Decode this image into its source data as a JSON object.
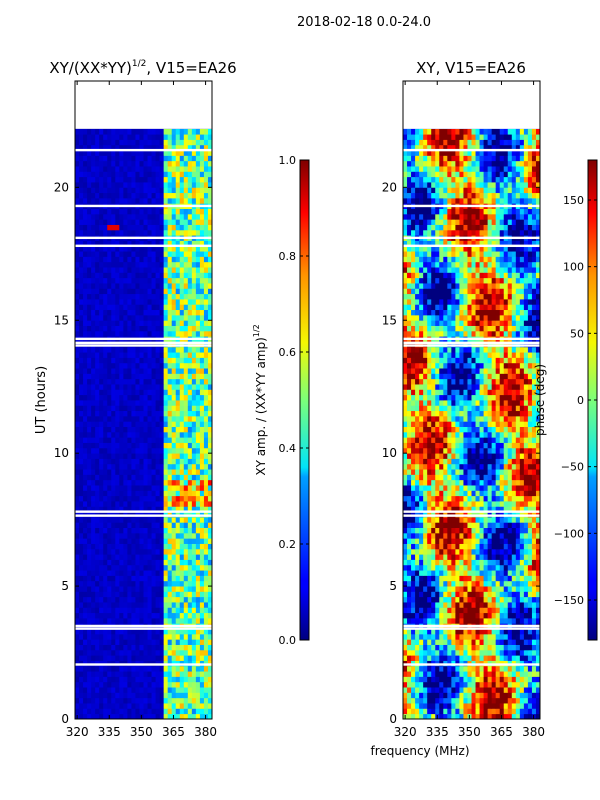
{
  "suptitle": "2018-02-18 0.0-24.0",
  "colors": {
    "jet": [
      "#00007f",
      "#0000ff",
      "#007fff",
      "#00ffff",
      "#7fff7f",
      "#ffff00",
      "#ff7f00",
      "#ff0000",
      "#7f0000"
    ],
    "gap": "#ffffff"
  },
  "chart_data": [
    {
      "type": "heatmap",
      "title": "XY/(XX*YY)",
      "title_sup": "1/2",
      "title_suffix": ", V15=EA26",
      "xlabel": "",
      "ylabel": "UT (hours)",
      "x_range": [
        319,
        383
      ],
      "y_range": [
        0,
        24
      ],
      "xticks": [
        320,
        335,
        350,
        365,
        380
      ],
      "yticks": [
        0,
        5,
        10,
        15,
        20
      ],
      "xtick_labels": [
        "320",
        "335",
        "350",
        "365",
        "380"
      ],
      "ytick_labels": [
        "0",
        "5",
        "10",
        "15",
        "20"
      ],
      "no_data_hours": [
        22.2,
        24
      ],
      "flagged_hours": [
        2.05,
        3.4,
        3.5,
        7.65,
        7.8,
        14.05,
        14.15,
        14.3,
        17.8,
        18.1,
        19.3,
        21.4
      ],
      "colorbar": {
        "label": "XY amp. / (XX*YY amp)",
        "label_sup": "1/2",
        "range": [
          0.0,
          1.0
        ],
        "ticks": [
          0.0,
          0.2,
          0.4,
          0.6,
          0.8,
          1.0
        ],
        "tick_labels": [
          "0.0",
          "0.2",
          "0.4",
          "0.6",
          "0.8",
          "1.0"
        ]
      }
    },
    {
      "type": "heatmap",
      "title": "XY, V15=EA26",
      "xlabel": "frequency (MHz)",
      "ylabel": "",
      "x_range": [
        319,
        383
      ],
      "y_range": [
        0,
        24
      ],
      "xticks": [
        320,
        335,
        350,
        365,
        380
      ],
      "yticks": [
        0,
        5,
        10,
        15,
        20
      ],
      "xtick_labels": [
        "320",
        "335",
        "350",
        "365",
        "380"
      ],
      "ytick_labels": [
        "0",
        "5",
        "10",
        "15",
        "20"
      ],
      "no_data_hours": [
        22.2,
        24
      ],
      "flagged_hours": [
        2.05,
        3.4,
        3.5,
        7.65,
        7.8,
        14.05,
        14.15,
        14.3,
        17.8,
        18.1,
        19.3,
        21.4
      ],
      "colorbar": {
        "label": "phase (deg)",
        "range": [
          -180,
          180
        ],
        "ticks": [
          -150,
          -100,
          -50,
          0,
          50,
          100,
          150
        ],
        "tick_labels": [
          "−150",
          "−100",
          "−50",
          "0",
          "50",
          "100",
          "150"
        ]
      }
    }
  ]
}
